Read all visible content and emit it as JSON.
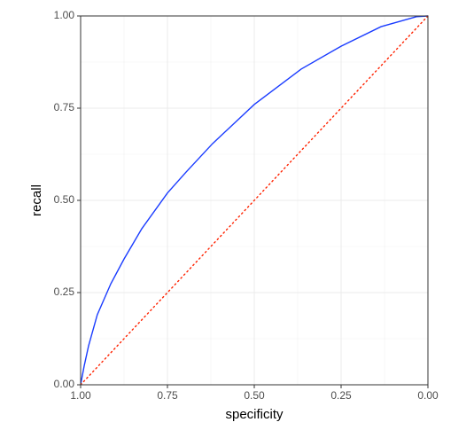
{
  "chart_data": {
    "type": "line",
    "x_label": "specificity",
    "y_label": "recall",
    "xlim": [
      1,
      0
    ],
    "ylim": [
      0,
      1
    ],
    "xticks": [
      {
        "value": 1,
        "label": "1.00"
      },
      {
        "value": 0.75,
        "label": "0.75"
      },
      {
        "value": 0.5,
        "label": "0.50"
      },
      {
        "value": 0.25,
        "label": "0.25"
      },
      {
        "value": 0,
        "label": "0.00"
      }
    ],
    "yticks": [
      {
        "value": 0,
        "label": "0.00"
      },
      {
        "value": 0.25,
        "label": "0.25"
      },
      {
        "value": 0.5,
        "label": "0.50"
      },
      {
        "value": 0.75,
        "label": "0.75"
      },
      {
        "value": 1,
        "label": "1.00"
      }
    ],
    "grid": true,
    "minor_grid": true,
    "series": [
      {
        "color": "#1a3cff",
        "dash": "solid",
        "x": [
          1,
          0.99,
          0.977,
          0.952,
          0.913,
          0.875,
          0.824,
          0.75,
          0.696,
          0.62,
          0.5,
          0.365,
          0.25,
          0.135,
          0.033,
          0
        ],
        "values": [
          0,
          0.05,
          0.106,
          0.19,
          0.274,
          0.341,
          0.423,
          0.52,
          0.577,
          0.654,
          0.76,
          0.856,
          0.918,
          0.971,
          0.998,
          1
        ]
      },
      {
        "color": "#ff2200",
        "dash": "dotted",
        "x": [
          1,
          0
        ],
        "values": [
          0,
          1
        ]
      }
    ]
  }
}
